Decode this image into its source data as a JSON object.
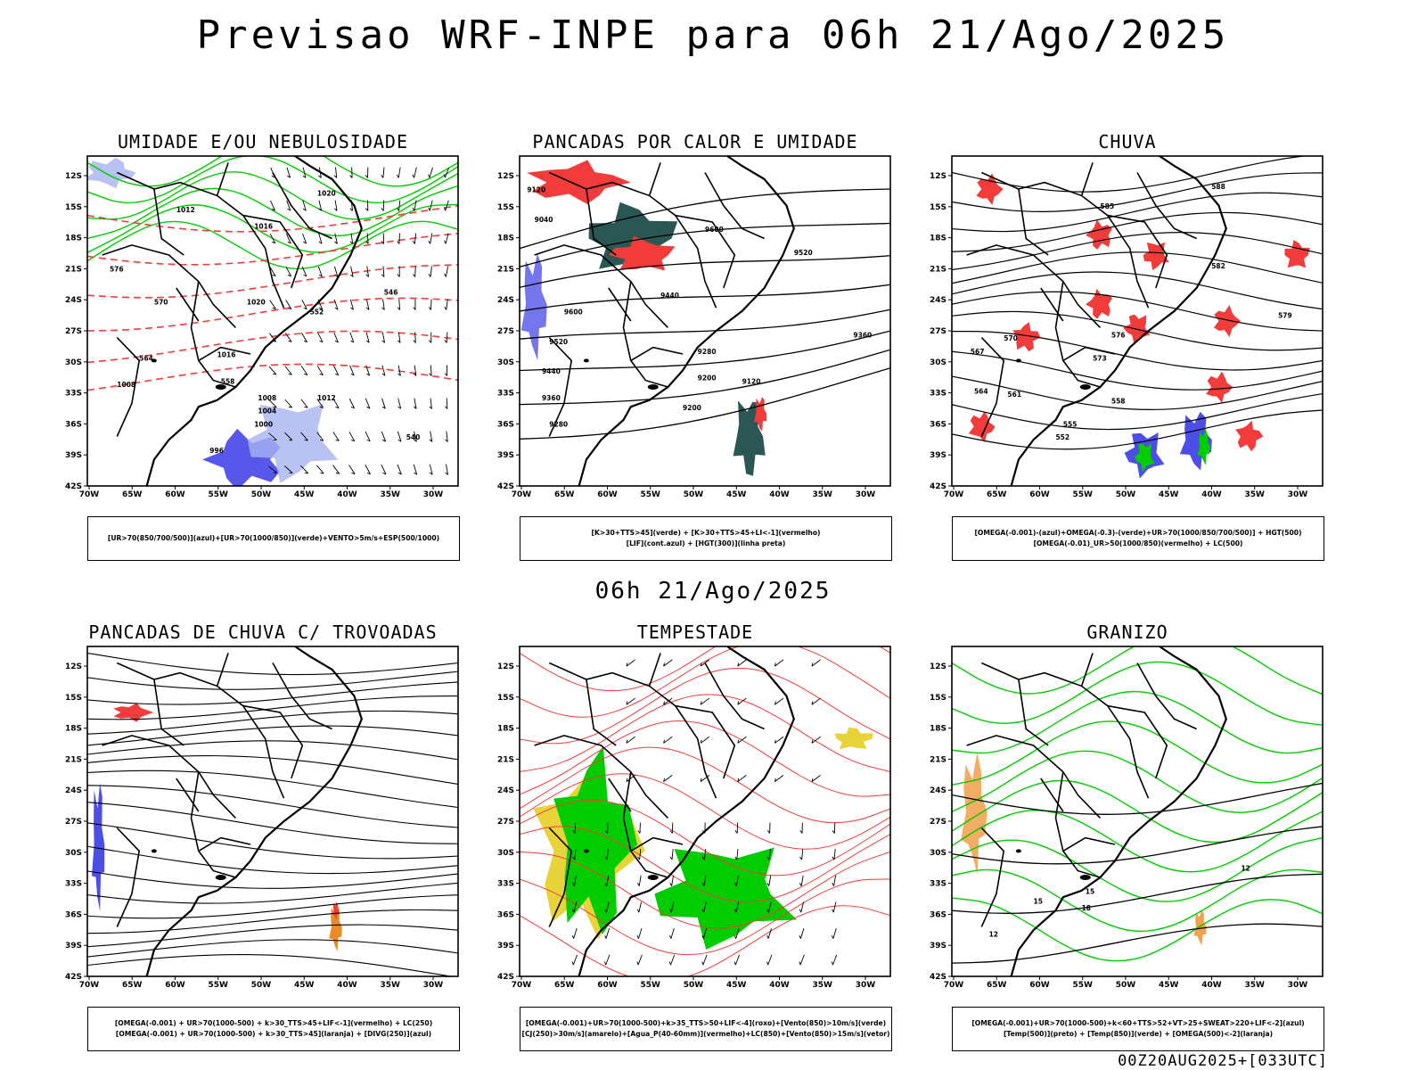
{
  "title": "Previsao WRF-INPE  para 06h 21/Ago/2025",
  "mid_title": "06h 21/Ago/2025",
  "footer": "00Z20AUG2025+[033UTC]",
  "axes": {
    "lat_ticks": [
      "12S",
      "15S",
      "18S",
      "21S",
      "24S",
      "27S",
      "30S",
      "33S",
      "36S",
      "39S",
      "42S"
    ],
    "lon_ticks": [
      "70W",
      "65W",
      "60W",
      "55W",
      "50W",
      "45W",
      "40W",
      "35W",
      "30W"
    ]
  },
  "colors": {
    "red": "#f23c3c",
    "blue": "#3a3ae6",
    "green": "#00cc00",
    "darkteal": "#1f4d4a",
    "yellow": "#e8d43a",
    "orange": "#f08a24",
    "lightblue": "#a8b4f0"
  },
  "panels": [
    {
      "title": "UMIDADE E/OU NEBULOSIDADE",
      "caption": [
        "[UR>70(850/700/500)](azul)+[UR>70(1000/850)](verde)+VENTO>5m/s+ESP(500/1000)"
      ],
      "labels": [
        "1020",
        "1012",
        "1016",
        "1020",
        "1016",
        "1008",
        "1004",
        "1000",
        "996",
        "1012",
        "1008",
        "576",
        "570",
        "564",
        "558",
        "552",
        "546",
        "540"
      ]
    },
    {
      "title": "PANCADAS POR CALOR E UMIDADE",
      "caption": [
        "[K>30+TTS>45](verde) + [K>30+TTS>45+LI<-1](vermelho)",
        "[LIF](cont.azul) + [HGT(300)](linha preta)"
      ],
      "labels": [
        "9600",
        "9520",
        "9440",
        "9360",
        "9280",
        "9200",
        "9120",
        "9040",
        "9600",
        "9520",
        "9440",
        "9360",
        "9280",
        "9200",
        "9120"
      ]
    },
    {
      "title": "CHUVA",
      "caption": [
        "[OMEGA(-0.001)-(azul)+OMEGA(-0.3)-(verde)+UR>70(1000/850/700/500)] + HGT(500)",
        "[OMEGA(-0.01)_UR>50(1000/850)(vermelho) + LC(500)"
      ],
      "labels": [
        "588",
        "585",
        "582",
        "579",
        "576",
        "573",
        "570",
        "567",
        "564",
        "561",
        "558",
        "555",
        "552"
      ]
    },
    {
      "title": "PANCADAS DE CHUVA C/ TROVOADAS",
      "caption": [
        "[OMEGA(-0.001) + UR>70(1000-500) + k>30_TTS>45+LIF<-1](vermelho) + LC(250)",
        "[OMEGA(-0.001) + UR>70(1000-500) + k>30_TTS>45](laranja) + [DIVG(250)](azul)"
      ],
      "labels": []
    },
    {
      "title": "TEMPESTADE",
      "caption": [
        "[OMEGA(-0.001)+UR>70(1000-500)+k>35_TTS>50+LIF<-4](roxo)+[Vento(850)>10m/s](verde)",
        "[CJ(250)>30m/s](amarelo)+[Agua_P(40-60mm)](vermelho)+LC(850)+[Vento(850)>15m/s](vetor)"
      ],
      "labels": []
    },
    {
      "title": "GRANIZO",
      "caption": [
        "[OMEGA(-0.001)+UR>70(1000-500)+k<60+TTS>52+VT>25+SWEAT>220+LIF<-2](azul)",
        "[Temp(500)](preto) + [Temp(850)](verde) + [OMEGA(500)<-2](laranja)"
      ],
      "labels": [
        "12",
        "15",
        "18",
        "15",
        "12"
      ]
    }
  ]
}
